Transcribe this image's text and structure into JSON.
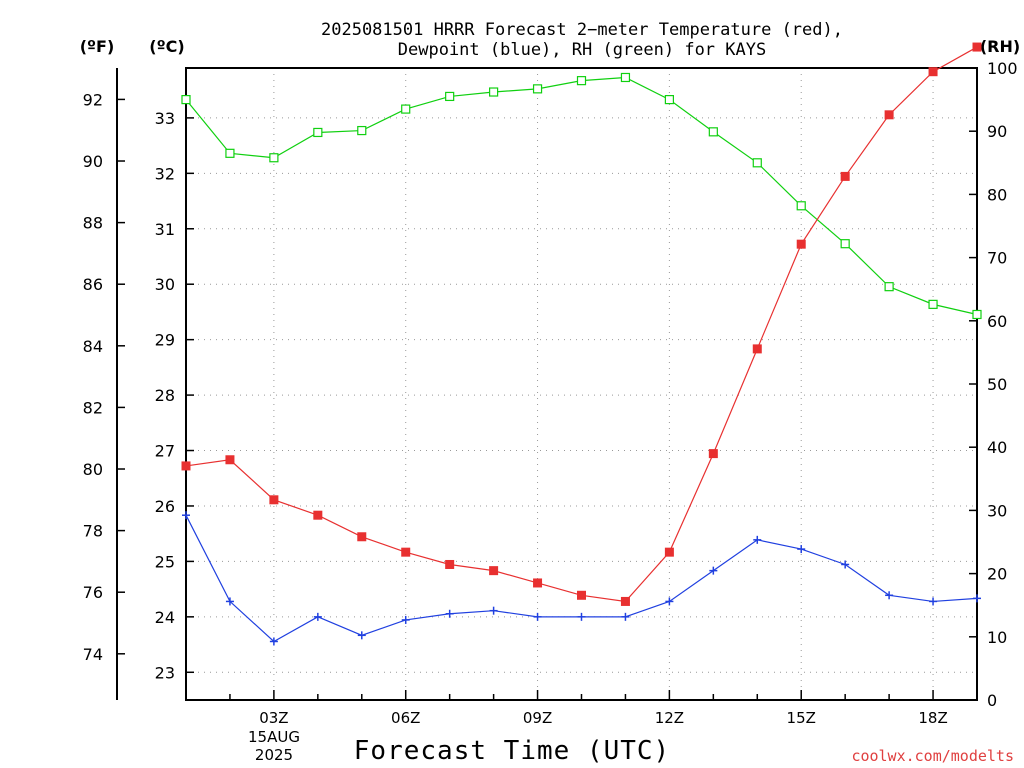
{
  "title_line1": "2025081501 HRRR Forecast 2−meter Temperature (red),",
  "title_line2": "Dewpoint (blue), RH (green) for KAYS",
  "unit_f": "(ºF)",
  "unit_c": "(ºC)",
  "unit_rh": "(RH)",
  "xlabel": "Forecast Time (UTC)",
  "date_label_1": "15AUG",
  "date_label_2": "2025",
  "credit": "coolwx.com/modelts",
  "colors": {
    "temperature": "#e83030",
    "dewpoint": "#2040e0",
    "rh": "#10d010",
    "grid": "#999999"
  },
  "chart_data": {
    "type": "line",
    "x": [
      "01Z",
      "02Z",
      "03Z",
      "04Z",
      "05Z",
      "06Z",
      "07Z",
      "08Z",
      "09Z",
      "10Z",
      "11Z",
      "12Z",
      "13Z",
      "14Z",
      "15Z",
      "16Z",
      "17Z",
      "18Z",
      "19Z"
    ],
    "xticks": [
      "03Z",
      "06Z",
      "09Z",
      "12Z",
      "15Z",
      "18Z"
    ],
    "xlim": [
      "01Z",
      "19Z"
    ],
    "yticks_f": [
      "74",
      "76",
      "78",
      "80",
      "82",
      "84",
      "86",
      "88",
      "90",
      "92"
    ],
    "yticks_c": [
      "23",
      "24",
      "25",
      "26",
      "27",
      "28",
      "29",
      "30",
      "31",
      "32",
      "33"
    ],
    "yticks_rh": [
      "0",
      "10",
      "20",
      "30",
      "40",
      "50",
      "60",
      "70",
      "80",
      "90",
      "100"
    ],
    "ylim_c": [
      22.5,
      33.9
    ],
    "ylim_f": [
      72.5,
      93.0
    ],
    "ylim_rh": [
      0,
      100
    ],
    "grid": true,
    "series": [
      {
        "axis": "temperature",
        "marker": "filled-square",
        "values_f": [
          80.1,
          80.3,
          79.0,
          78.5,
          77.8,
          77.3,
          76.9,
          76.7,
          76.3,
          75.9,
          75.7,
          77.3,
          80.5,
          83.9,
          87.3,
          89.5,
          91.5,
          92.9,
          93.7
        ]
      },
      {
        "axis": "temperature",
        "marker": "plus",
        "values_f": [
          78.5,
          75.7,
          74.4,
          75.2,
          74.6,
          75.1,
          75.3,
          75.4,
          75.2,
          75.2,
          75.2,
          75.7,
          76.7,
          77.7,
          77.4,
          76.9,
          75.9,
          75.7,
          75.8
        ]
      },
      {
        "axis": "rh",
        "marker": "open-square",
        "values": [
          95,
          86.5,
          85.8,
          89.8,
          90.1,
          93.5,
          95.5,
          96.2,
          96.7,
          98,
          98.5,
          95,
          89.9,
          85,
          78.2,
          72.2,
          65.4,
          62.6,
          61
        ]
      }
    ]
  }
}
